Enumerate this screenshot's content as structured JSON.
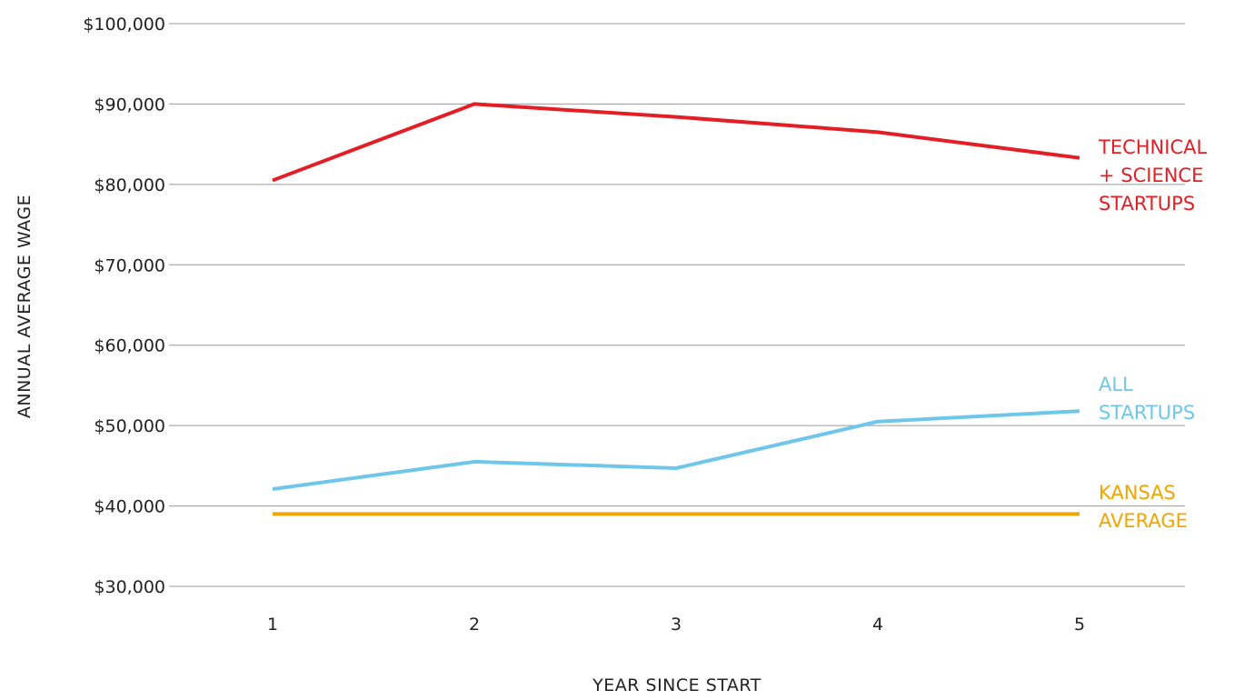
{
  "chart_data": {
    "type": "line",
    "x": [
      1,
      2,
      3,
      4,
      5
    ],
    "x_tick_labels": [
      "1",
      "2",
      "3",
      "4",
      "5"
    ],
    "y_tick_labels": [
      "$30,000",
      "$40,000",
      "$50,000",
      "$60,000",
      "$70,000",
      "$80,000",
      "$90,000",
      "$100,000"
    ],
    "y_ticks": [
      30000,
      40000,
      50000,
      60000,
      70000,
      80000,
      90000,
      100000
    ],
    "ylim": [
      30000,
      100000
    ],
    "xlabel": "YEAR SINCE START",
    "ylabel": "ANNUAL AVERAGE WAGE",
    "grid": true,
    "legend": "inline-right",
    "series": [
      {
        "name": "TECHNICAL + SCIENCE STARTUPS",
        "label_lines": [
          "TECHNICAL",
          "+ SCIENCE",
          "STARTUPS"
        ],
        "color": "#e31e24",
        "values": [
          80500,
          90000,
          88400,
          86500,
          83300
        ]
      },
      {
        "name": "ALL STARTUPS",
        "label_lines": [
          "ALL",
          "STARTUPS"
        ],
        "color": "#6ec6ea",
        "values": [
          42100,
          45500,
          44700,
          50500,
          51800
        ]
      },
      {
        "name": "KANSAS AVERAGE",
        "label_lines": [
          "KANSAS",
          "AVERAGE"
        ],
        "color": "#f0a500",
        "values": [
          39000,
          39000,
          39000,
          39000,
          39000
        ]
      }
    ]
  }
}
